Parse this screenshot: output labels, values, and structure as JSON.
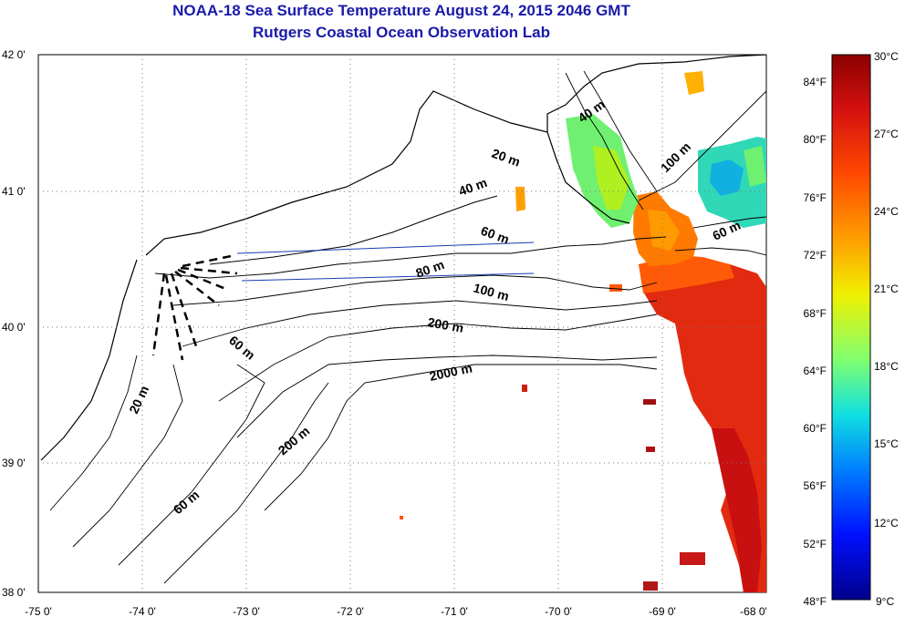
{
  "title": {
    "line1": "NOAA-18 Sea Surface Temperature August 24, 2015 2046 GMT",
    "line2": "Rutgers Coastal Ocean Observation Lab"
  },
  "map": {
    "lat_labels": [
      "42 0'",
      "41 0'",
      "40 0'",
      "39 0'",
      "38 0'"
    ],
    "lon_labels": [
      "-75 0'",
      "-74 0'",
      "-73 0'",
      "-72 0'",
      "-71 0'",
      "-70 0'",
      "-69 0'",
      "-68 0'"
    ],
    "depth_labels": [
      "40 m",
      "20 m",
      "40 m",
      "100 m",
      "60 m",
      "60 m",
      "80 m",
      "100 m",
      "200 m",
      "60 m",
      "2000 m",
      "20 m",
      "200 m",
      "60 m"
    ],
    "grid": "dotted",
    "land_color": "#ffffff"
  },
  "colorbar": {
    "celsius_labels": [
      "30°C",
      "27°C",
      "24°C",
      "21°C",
      "18°C",
      "15°C",
      "12°C",
      "9°C"
    ],
    "fahrenheit_labels": [
      "84°F",
      "80°F",
      "76°F",
      "72°F",
      "68°F",
      "64°F",
      "60°F",
      "56°F",
      "52°F",
      "48°F"
    ],
    "colors": [
      "#8b0000",
      "#d41010",
      "#ff4a00",
      "#ffa000",
      "#f0f000",
      "#80ff70",
      "#10e0e0",
      "#0080ff",
      "#0010ff",
      "#00008c"
    ]
  }
}
